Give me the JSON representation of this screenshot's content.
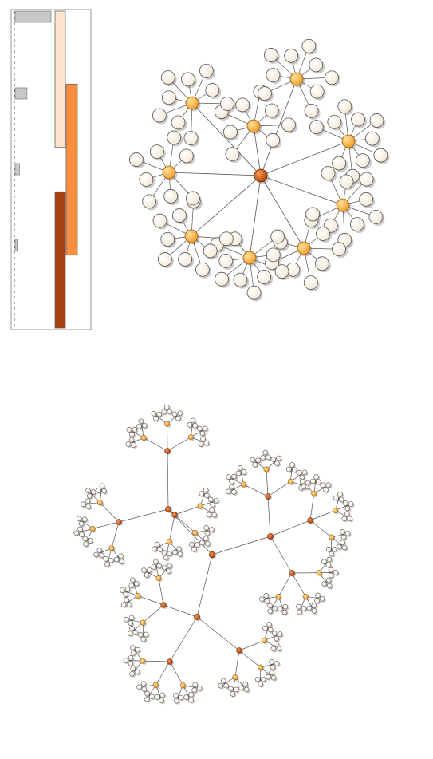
{
  "colors": {
    "root": "#c0501a",
    "hub": "#f4a63c",
    "leaf": "#fdf8ef",
    "edge": "#555555",
    "shadow": "#bbbbbb",
    "panel_border": "#999999",
    "bar_gray": "#c8c8c8",
    "bar_peach": "#fde3cc",
    "bar_orange": "#f98e3e",
    "bar_rust": "#a8400e"
  },
  "histogram": {
    "gray_bars": [
      {
        "level": 0,
        "fraction": 1.0
      },
      {
        "level": 1,
        "fraction": 0.33
      },
      {
        "level": 2,
        "fraction": 0.12
      },
      {
        "level": 3,
        "fraction": 0.06
      }
    ],
    "stacked_bars": [
      {
        "name": "peach",
        "start": 0.0,
        "end": 0.43
      },
      {
        "name": "orange",
        "start": 0.23,
        "end": 0.77
      },
      {
        "name": "rust",
        "start": 0.57,
        "end": 1.0
      }
    ]
  },
  "graph1": {
    "hub_count": 9,
    "leaf_counts": [
      8,
      9,
      10,
      9,
      8,
      10,
      9,
      8,
      9
    ]
  },
  "graph2": {
    "level1_count": 3,
    "level2_per_level1": 3,
    "level3_per_level2": 3,
    "leaf_cluster_per_level3": 3
  }
}
